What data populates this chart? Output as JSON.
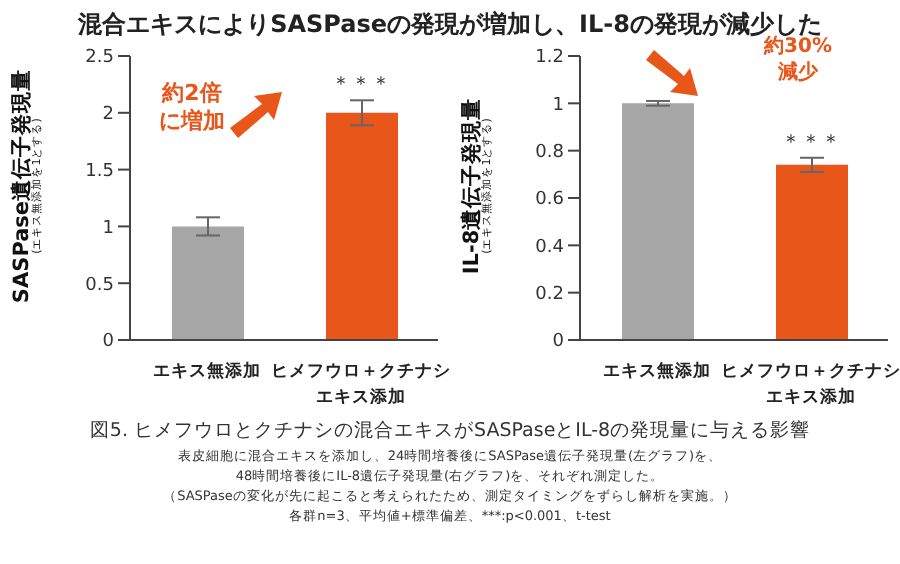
{
  "chart_data": [
    {
      "type": "bar",
      "title": "混合エキスによりSASPaseの発現が増加し、IL-8の発現が減少した",
      "ylabel": "SASPase遺伝子発現量\n(エキス無添加を1とする)",
      "categories": [
        "エキス無添加",
        "ヒメフウロ＋クチナシエキス添加"
      ],
      "values": [
        1.0,
        2.0
      ],
      "colors": [
        "#a6a6a6",
        "#e8561a"
      ],
      "errors": [
        0.08,
        0.11
      ],
      "ylim": [
        0,
        2.5
      ],
      "yticks": [
        0,
        0.5,
        1,
        1.5,
        2,
        2.5
      ],
      "grid": false,
      "legend": false,
      "annotations": [
        "約2倍に増加",
        {
          "text": "＊＊＊",
          "x": "ヒメフウロ＋クチナシエキス添加",
          "y": 2.11
        },
        "図5. ヒメフウロとクチナシの混合エキスがSASPaseとIL-8の発現量に与える影響",
        "表皮細胞に混合エキスを添加し、24時間培養後にSASPase遺伝子発現量(左グラフ)を、",
        "48時間培養後にIL-8遺伝子発現量(右グラフ)を、それぞれ測定した。",
        "（SASPaseの変化が先に起こると考えられたため、測定タイミングをずらし解析を実施。）",
        "各群n=3、平均値+標準偏差、***:p<0.001、t-test"
      ]
    },
    {
      "type": "bar",
      "ylabel": "IL-8遺伝子発現量\n(エキス無添加を1とする)",
      "categories": [
        "エキス無添加",
        "ヒメフウロ＋クチナシエキス添加"
      ],
      "values": [
        1.0,
        0.74
      ],
      "colors": [
        "#a6a6a6",
        "#e8561a"
      ],
      "errors": [
        0.01,
        0.03
      ],
      "ylim": [
        0,
        1.2
      ],
      "yticks": [
        0,
        0.2,
        0.4,
        0.6,
        0.8,
        1,
        1.2
      ],
      "grid": false,
      "legend": false,
      "annotations": [
        "約30%減少",
        {
          "text": "＊＊＊",
          "x": "ヒメフウロ＋クチナシエキス添加",
          "y": 0.77
        }
      ]
    }
  ]
}
